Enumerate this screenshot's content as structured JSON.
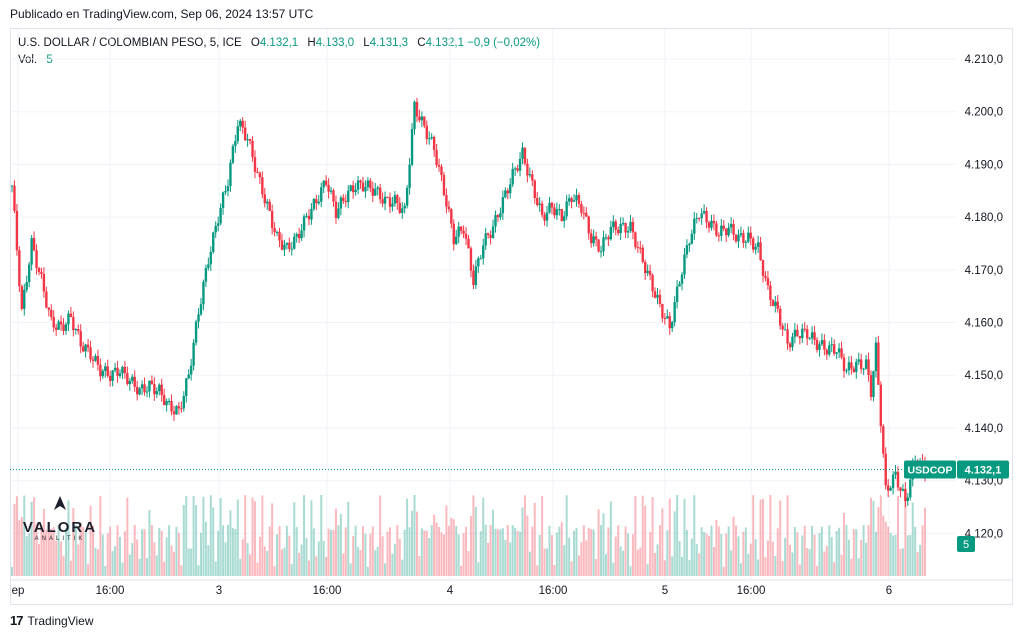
{
  "header": {
    "published": "Publicado en TradingView.com, Sep 06, 2024 13:57 UTC"
  },
  "legend": {
    "symbol": "U.S. DOLLAR / COLOMBIAN PESO, 5, ICE",
    "open_label": "O",
    "open": "4.132,1",
    "high_label": "H",
    "high": "4.133,0",
    "low_label": "L",
    "low": "4.131,3",
    "close_label": "C",
    "close": "4.132,1",
    "change": "−0,9 (−0,02%)",
    "vol_label": "Vol.",
    "vol_value": "5"
  },
  "footer": {
    "brand": "TradingView"
  },
  "watermark": {
    "name": "VALORA",
    "sub": "ANALITIK"
  },
  "colors": {
    "up": "#089981",
    "down": "#f23645",
    "grid": "#f0f3fa",
    "text": "#131722",
    "axis": "#e0e3eb"
  },
  "chart_data": {
    "type": "candlestick",
    "symbol": "USDCOP",
    "interval": "5",
    "price_axis": {
      "ticks": [
        "4.210,0",
        "4.200,0",
        "4.190,0",
        "4.180,0",
        "4.170,0",
        "4.160,0",
        "4.150,0",
        "4.140,0",
        "4.130,0",
        "4.120,0"
      ],
      "tick_values": [
        4210,
        4200,
        4190,
        4180,
        4170,
        4160,
        4150,
        4140,
        4130,
        4120
      ],
      "range": [
        4112,
        4219
      ]
    },
    "time_axis": {
      "labels": [
        "ep",
        "16:00",
        "3",
        "16:00",
        "4",
        "16:00",
        "5",
        "16:00",
        "6"
      ]
    },
    "last_price": {
      "symbol_label": "USDCOP",
      "value": "4.132,1",
      "numeric": 4132.1
    },
    "volume_last": "5",
    "close_path": [
      [
        0,
        4186
      ],
      [
        2,
        4162
      ],
      [
        4,
        4175
      ],
      [
        6,
        4168
      ],
      [
        8,
        4160
      ],
      [
        10,
        4159
      ],
      [
        12,
        4161
      ],
      [
        14,
        4156
      ],
      [
        16,
        4154
      ],
      [
        18,
        4151
      ],
      [
        20,
        4150
      ],
      [
        22,
        4151
      ],
      [
        24,
        4149
      ],
      [
        26,
        4147
      ],
      [
        28,
        4148
      ],
      [
        30,
        4147
      ],
      [
        32,
        4144
      ],
      [
        34,
        4143
      ],
      [
        36,
        4150
      ],
      [
        38,
        4162
      ],
      [
        40,
        4172
      ],
      [
        42,
        4180
      ],
      [
        44,
        4187
      ],
      [
        46,
        4198
      ],
      [
        48,
        4195
      ],
      [
        50,
        4188
      ],
      [
        52,
        4182
      ],
      [
        54,
        4176
      ],
      [
        56,
        4174
      ],
      [
        58,
        4176
      ],
      [
        60,
        4180
      ],
      [
        62,
        4183
      ],
      [
        64,
        4187
      ],
      [
        66,
        4181
      ],
      [
        68,
        4184
      ],
      [
        70,
        4186
      ],
      [
        72,
        4186
      ],
      [
        74,
        4185
      ],
      [
        76,
        4183
      ],
      [
        78,
        4183
      ],
      [
        80,
        4181
      ],
      [
        82,
        4201
      ],
      [
        84,
        4197
      ],
      [
        86,
        4193
      ],
      [
        88,
        4185
      ],
      [
        90,
        4176
      ],
      [
        92,
        4178
      ],
      [
        94,
        4168
      ],
      [
        96,
        4175
      ],
      [
        98,
        4178
      ],
      [
        100,
        4183
      ],
      [
        102,
        4188
      ],
      [
        104,
        4192
      ],
      [
        106,
        4186
      ],
      [
        108,
        4180
      ],
      [
        110,
        4182
      ],
      [
        112,
        4180
      ],
      [
        114,
        4184
      ],
      [
        116,
        4182
      ],
      [
        118,
        4176
      ],
      [
        120,
        4174
      ],
      [
        122,
        4178
      ],
      [
        124,
        4178
      ],
      [
        126,
        4178
      ],
      [
        132,
        4163
      ],
      [
        134,
        4159
      ],
      [
        136,
        4168
      ],
      [
        138,
        4176
      ],
      [
        140,
        4181
      ],
      [
        142,
        4179
      ],
      [
        144,
        4177
      ],
      [
        146,
        4178
      ],
      [
        148,
        4176
      ],
      [
        150,
        4176
      ],
      [
        152,
        4174
      ],
      [
        154,
        4166
      ],
      [
        156,
        4162
      ],
      [
        158,
        4156
      ],
      [
        160,
        4158
      ],
      [
        162,
        4158
      ],
      [
        164,
        4156
      ],
      [
        166,
        4155
      ],
      [
        168,
        4155
      ],
      [
        170,
        4151
      ],
      [
        172,
        4152
      ],
      [
        174,
        4152
      ],
      [
        175,
        4147
      ],
      [
        176,
        4155
      ],
      [
        178,
        4128
      ],
      [
        180,
        4131
      ],
      [
        182,
        4126
      ],
      [
        184,
        4134
      ],
      [
        186,
        4132.1
      ]
    ],
    "volume_range": [
      0,
      30
    ]
  }
}
